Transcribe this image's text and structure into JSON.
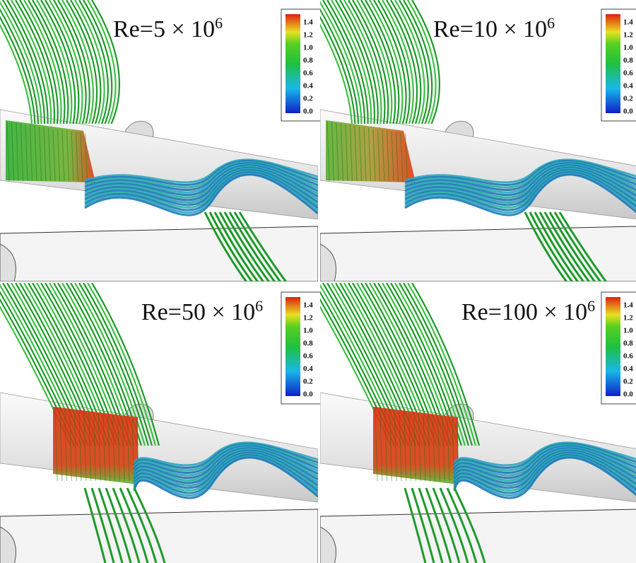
{
  "panels": [
    {
      "title": {
        "base": "Re=5 × 10",
        "exponent": "6"
      },
      "colorbar": {
        "labels": [
          "1.4",
          "1.2",
          "1.0",
          "0.8",
          "0.6",
          "0.4",
          "0.2",
          "0.0"
        ]
      }
    },
    {
      "title": {
        "base": "Re=10 × 10",
        "exponent": "6"
      },
      "colorbar": {
        "labels": [
          "1.4",
          "1.2",
          "1.0",
          "0.8",
          "0.6",
          "0.4",
          "0.2",
          "0.0"
        ]
      }
    },
    {
      "title": {
        "base": "Re=50 × 10",
        "exponent": "6"
      },
      "colorbar": {
        "labels": [
          "1.4",
          "1.2",
          "1.0",
          "0.8",
          "0.6",
          "0.4",
          "0.2",
          "0.0"
        ]
      }
    },
    {
      "title": {
        "base": "Re=100 × 10",
        "exponent": "6"
      },
      "colorbar": {
        "labels": [
          "1.4",
          "1.2",
          "1.0",
          "0.8",
          "0.6",
          "0.4",
          "0.2",
          "0.0"
        ]
      }
    }
  ]
}
